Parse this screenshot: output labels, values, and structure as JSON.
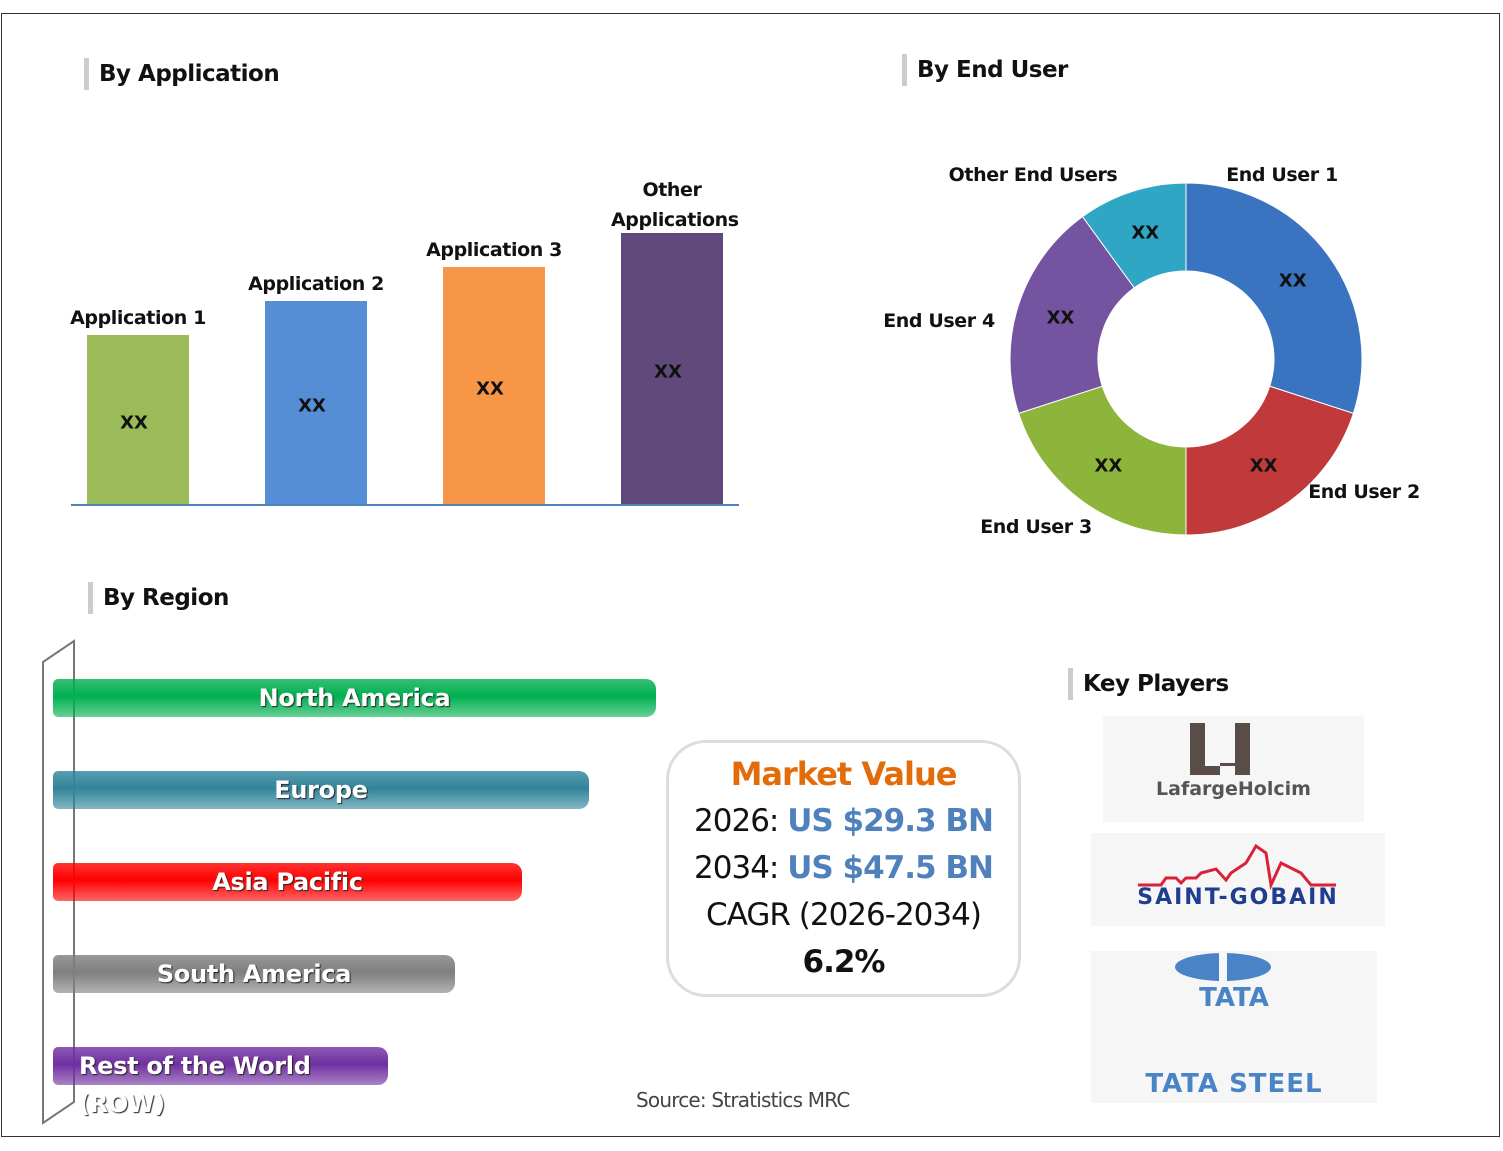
{
  "sections": {
    "application": "By Application",
    "end_user": "By End User",
    "region": "By Region",
    "key_players": "Key Players"
  },
  "chart_data": [
    {
      "type": "bar",
      "title": "By Application",
      "categories": [
        "Application 1",
        "Application 2",
        "Application 3",
        "Other Applications"
      ],
      "values": [
        5,
        6,
        7,
        8
      ],
      "data_labels": [
        "XX",
        "XX",
        "XX",
        "XX"
      ],
      "colors": [
        "#9bbb59",
        "#558ed5",
        "#f79646",
        "#604a7b"
      ]
    },
    {
      "type": "pie",
      "title": "By End User",
      "donut": true,
      "categories": [
        "End User 1",
        "End User 2",
        "End User 3",
        "End User 4",
        "Other End Users"
      ],
      "values": [
        30,
        20,
        20,
        20,
        10
      ],
      "data_labels": [
        "XX",
        "XX",
        "XX",
        "XX",
        "XX"
      ],
      "colors": [
        "#3a74c1",
        "#c0393b",
        "#8db53c",
        "#7454a0",
        "#2fa6c4"
      ]
    },
    {
      "type": "bar",
      "orientation": "horizontal",
      "title": "By Region",
      "categories": [
        "North America",
        "Europe",
        "Asia Pacific",
        "South America",
        "Rest of the World (ROW)"
      ],
      "values": [
        9,
        8,
        7,
        6,
        5
      ],
      "colors": [
        "#00b050",
        "#31849b",
        "#ff0000",
        "#7f7f7f",
        "#7030a0"
      ]
    }
  ],
  "market": {
    "title": "Market Value",
    "y1_label": "2026: ",
    "y1_value": "US $29.3 BN",
    "y2_label": "2034: ",
    "y2_value": "US $47.5 BN",
    "cagr_label": "CAGR (2026-2034)",
    "cagr_value": "6.2%"
  },
  "players": [
    "LafargeHolcim",
    "SAINT-GOBAIN",
    "TATA",
    "TATA STEEL"
  ],
  "source": "Source: Stratistics MRC"
}
